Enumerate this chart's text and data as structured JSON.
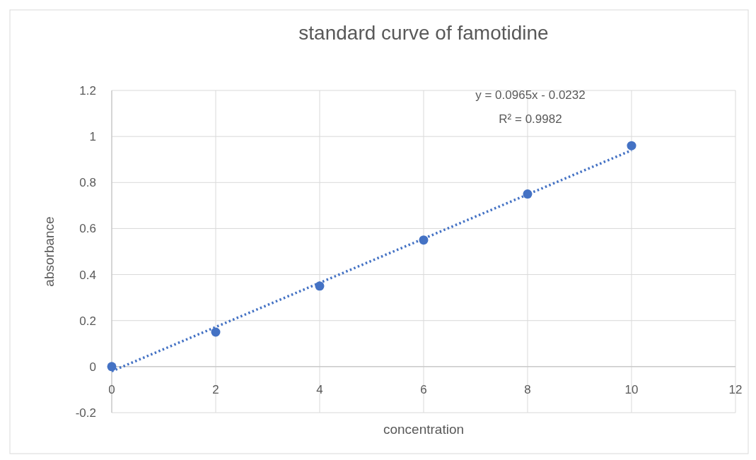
{
  "chart_data": {
    "type": "scatter",
    "title": "standard curve of famotidine",
    "xlabel": "concentration",
    "ylabel": "absorbance",
    "x": [
      0,
      2,
      4,
      6,
      8,
      10
    ],
    "series": [
      {
        "color": "#4472c4",
        "values": [
          0,
          0.15,
          0.35,
          0.55,
          0.75,
          0.96
        ],
        "marker": "circle"
      },
      {
        "type": "line",
        "color": "#4472c4",
        "x": [
          0,
          10
        ],
        "values": [
          -0.02,
          0.94
        ],
        "marker": "none",
        "line_style": "dotted"
      }
    ],
    "xlim": [
      0,
      12
    ],
    "xticks": [
      0,
      2,
      4,
      6,
      8,
      10,
      12
    ],
    "ylim": [
      -0.2,
      1.2
    ],
    "yticks": [
      -0.2,
      0,
      0.2,
      0.4,
      0.6,
      0.8,
      1,
      1.2
    ],
    "grid": true,
    "annotations": [
      "y = 0.0965x - 0.0232",
      "R² = 0.9982"
    ]
  }
}
